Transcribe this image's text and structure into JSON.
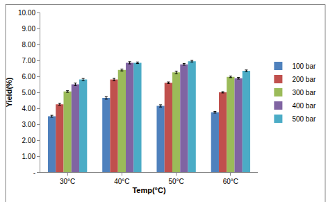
{
  "chart_data": {
    "type": "bar",
    "x_label": "Temp(°C)",
    "y_label": "Yield(%)",
    "categories": [
      "30°C",
      "40°C",
      "50°C",
      "60°C"
    ],
    "series": [
      {
        "name": "100 bar",
        "color": "#4f81bd",
        "values": [
          3.5,
          4.65,
          4.15,
          3.75
        ],
        "errors": [
          0.06,
          0.08,
          0.07,
          0.05
        ]
      },
      {
        "name": "200 bar",
        "color": "#c0504d",
        "values": [
          4.25,
          5.8,
          5.6,
          5.0
        ],
        "errors": [
          0.06,
          0.08,
          0.05,
          0.04
        ]
      },
      {
        "name": "300 bar",
        "color": "#9bbb59",
        "values": [
          5.05,
          6.4,
          6.25,
          5.97
        ],
        "errors": [
          0.05,
          0.06,
          0.08,
          0.05
        ]
      },
      {
        "name": "400 bar",
        "color": "#8064a2",
        "values": [
          5.5,
          6.85,
          6.75,
          5.88
        ],
        "errors": [
          0.08,
          0.07,
          0.05,
          0.05
        ]
      },
      {
        "name": "500 bar",
        "color": "#4bacc6",
        "values": [
          5.8,
          6.85,
          6.95,
          6.35
        ],
        "errors": [
          0.07,
          0.05,
          0.05,
          0.05
        ]
      }
    ],
    "ylim": [
      0,
      10
    ],
    "yticks": [
      {
        "value": 0,
        "label": "-"
      },
      {
        "value": 1,
        "label": "1.00"
      },
      {
        "value": 2,
        "label": "2.00"
      },
      {
        "value": 3,
        "label": "3.00"
      },
      {
        "value": 4,
        "label": "4.00"
      },
      {
        "value": 5,
        "label": "5.00"
      },
      {
        "value": 6,
        "label": "6.00"
      },
      {
        "value": 7,
        "label": "7.00"
      },
      {
        "value": 8,
        "label": "8.00"
      },
      {
        "value": 9,
        "label": "9.00"
      },
      {
        "value": 10,
        "label": "10.00"
      }
    ],
    "grid": false,
    "legend": "right"
  }
}
